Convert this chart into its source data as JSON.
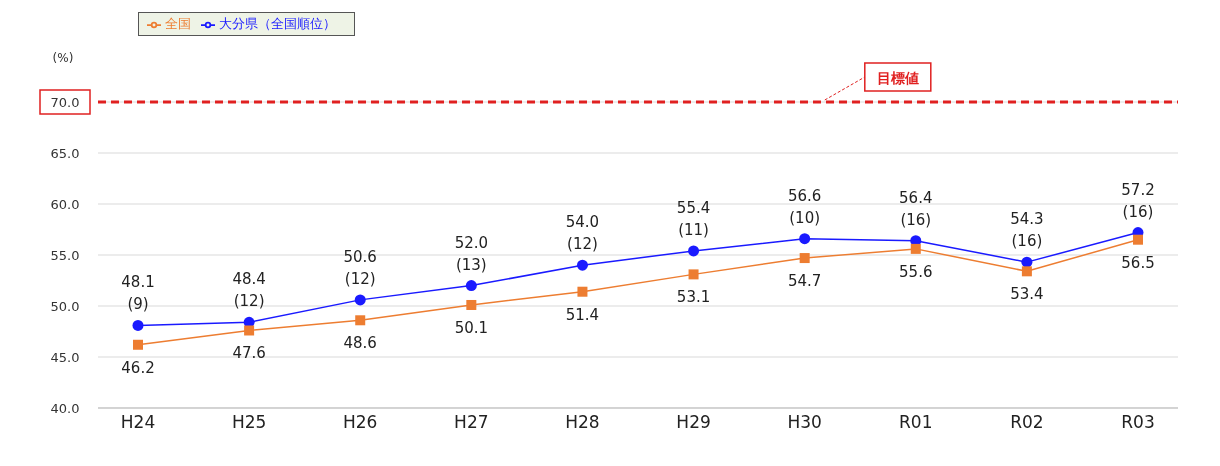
{
  "chart_data": {
    "type": "line",
    "ylabel": "(%)",
    "categories": [
      "H24",
      "H25",
      "H26",
      "H27",
      "H28",
      "H29",
      "H30",
      "R01",
      "R02",
      "R03"
    ],
    "series": [
      {
        "name": "大分県（全国順位）",
        "color": "#1a1aff",
        "marker": "circle",
        "values": [
          48.1,
          48.4,
          50.6,
          52.0,
          54.0,
          55.4,
          56.6,
          56.4,
          54.3,
          57.2
        ],
        "value_labels": [
          "48.1\n(9)",
          "48.4\n(12)",
          "50.6\n(12)",
          "52.0\n(13)",
          "54.0\n(12)",
          "55.4\n(11)",
          "56.6\n(10)",
          "56.4\n(16)",
          "54.3\n(16)",
          "57.2\n(16)"
        ]
      },
      {
        "name": "全国",
        "color": "#ed7d31",
        "marker": "square",
        "values": [
          46.2,
          47.6,
          48.6,
          50.1,
          51.4,
          53.1,
          54.7,
          55.6,
          53.4,
          56.5
        ],
        "value_labels": [
          "46.2",
          "47.6",
          "48.6",
          "50.1",
          "51.4",
          "53.1",
          "54.7",
          "55.6",
          "53.4",
          "56.5"
        ]
      }
    ],
    "ylim": [
      40,
      70
    ],
    "yticks": [
      {
        "value": 40,
        "label": "40.0"
      },
      {
        "value": 45,
        "label": "45.0"
      },
      {
        "value": 50,
        "label": "50.0"
      },
      {
        "value": 55,
        "label": "55.0"
      },
      {
        "value": 60,
        "label": "60.0"
      },
      {
        "value": 65,
        "label": "65.0"
      },
      {
        "value": 70,
        "label": "70.0"
      }
    ],
    "grid": "y",
    "legend": "top left",
    "ref_lines": [
      {
        "axis": "y",
        "value": 70,
        "label": "目標値",
        "color": "#e02020",
        "line_style": "dashed"
      }
    ]
  }
}
